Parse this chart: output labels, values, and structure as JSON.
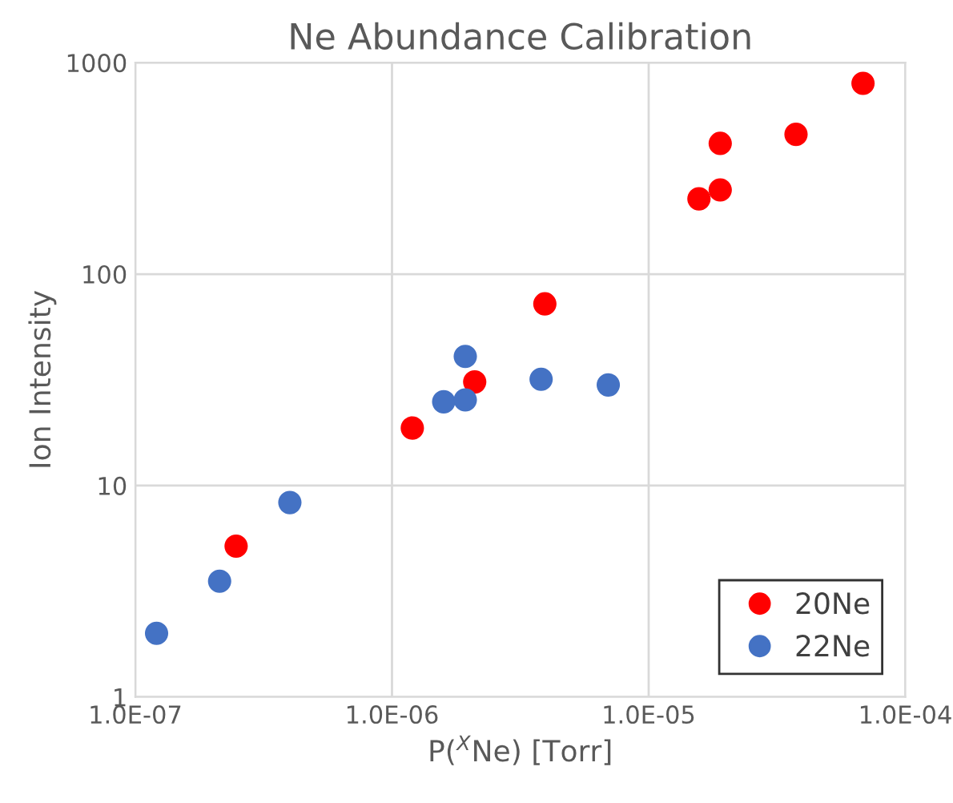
{
  "chart_data": {
    "type": "scatter",
    "title": "Ne Abundance Calibration",
    "xlabel": "P($^{X}$Ne) [Torr]",
    "ylabel": "Ion Intensity",
    "log": "xy",
    "grid": true,
    "legend": "bottom right",
    "marker": "circle",
    "xlim": [
      1e-07,
      0.0001
    ],
    "xticks": [
      {
        "value": 1e-07,
        "label": "1.0E-07"
      },
      {
        "value": 1e-06,
        "label": "1.0E-06"
      },
      {
        "value": 1e-05,
        "label": "1.0E-05"
      },
      {
        "value": 0.0001,
        "label": "1.0E-04"
      }
    ],
    "ylim": [
      1,
      1000
    ],
    "yticks": [
      1,
      10,
      100,
      1000
    ],
    "series": [
      {
        "name": "20Ne",
        "color": "#ff0000",
        "x": [
          2.47e-07,
          1.2e-06,
          2.1e-06,
          3.94e-06,
          1.57e-05,
          1.9e-05,
          1.9e-05,
          3.75e-05,
          6.84e-05
        ],
        "values": [
          5.17,
          18.7,
          30.9,
          72.3,
          227,
          250,
          415,
          458,
          798
        ]
      },
      {
        "name": "22Ne",
        "color": "#4472c4",
        "x": [
          1.21e-07,
          2.13e-07,
          4e-07,
          1.59e-06,
          1.93e-06,
          1.93e-06,
          3.81e-06,
          6.96e-06
        ],
        "values": [
          2.0,
          3.53,
          8.31,
          24.9,
          25.4,
          40.8,
          31.8,
          29.9
        ]
      }
    ]
  }
}
